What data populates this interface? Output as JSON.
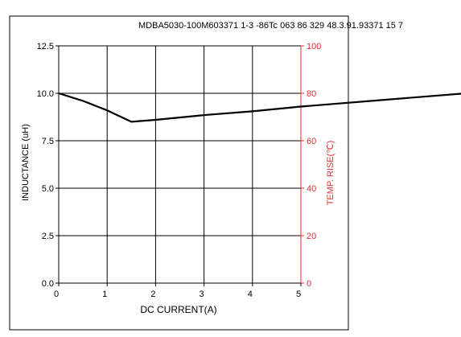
{
  "header": {
    "text": "MDBA5030-100M603371 1-3 -86Tc 063 86 329 48.3.91.93371 15 7"
  },
  "chart_data": {
    "type": "line",
    "title": "",
    "xlabel": "DC CURRENT(A)",
    "ylabel": "INDUCTANCE (uH)",
    "y2label": "TEMP. RISE(℃)",
    "xlim": [
      0,
      5
    ],
    "ylim": [
      0,
      12.5
    ],
    "y2lim": [
      0,
      100
    ],
    "x_ticks": [
      "0",
      "1",
      "2",
      "3",
      "4",
      "5"
    ],
    "y_ticks": [
      "0.0",
      "2.5",
      "5.0",
      "7.5",
      "10.0",
      "12.5"
    ],
    "y2_ticks": [
      "0",
      "20",
      "40",
      "60",
      "80",
      "100"
    ],
    "grid": true,
    "colors": {
      "line": "#000000",
      "grid": "#000000",
      "right_axis": "#e03030"
    },
    "series": [
      {
        "x": [
          0,
          0.5,
          1.0,
          1.5,
          2.0,
          3.0,
          4.0,
          5.0,
          8.4
        ],
        "y": [
          10.0,
          9.6,
          9.1,
          8.5,
          8.6,
          8.85,
          9.05,
          9.3,
          10.0
        ]
      }
    ]
  }
}
